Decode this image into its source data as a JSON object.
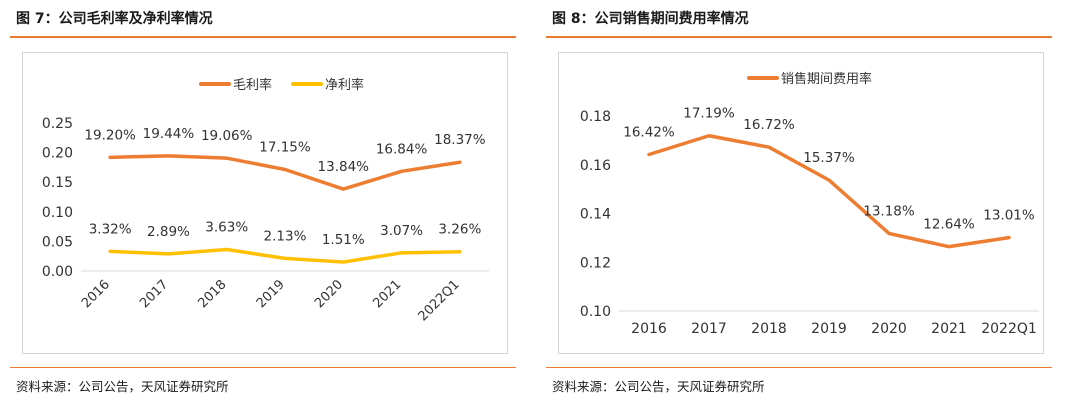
{
  "colors": {
    "accent": "#e8792e",
    "gross": "#ed7d31",
    "net": "#ffc000"
  },
  "left": {
    "figure_title": "图 7：公司毛利率及净利率情况",
    "source": "资料来源：公司公告，天风证券研究所"
  },
  "right": {
    "figure_title": "图 8：公司销售期间费用率情况",
    "source": "资料来源：公司公告，天风证券研究所"
  },
  "chart_data": [
    {
      "type": "line",
      "categories": [
        "2016",
        "2017",
        "2018",
        "2019",
        "2020",
        "2021",
        "2022Q1"
      ],
      "ylim": [
        0,
        0.25
      ],
      "yticks": [
        "0.00",
        "0.05",
        "0.10",
        "0.15",
        "0.20",
        "0.25"
      ],
      "legend_position": "top",
      "grid": false,
      "series": [
        {
          "name": "毛利率",
          "color": "#ed7d31",
          "values": [
            0.192,
            0.1944,
            0.1906,
            0.1715,
            0.1384,
            0.1684,
            0.1837
          ],
          "labels": [
            "19.20%",
            "19.44%",
            "19.06%",
            "17.15%",
            "13.84%",
            "16.84%",
            "18.37%"
          ]
        },
        {
          "name": "净利率",
          "color": "#ffc000",
          "values": [
            0.0332,
            0.0289,
            0.0363,
            0.0213,
            0.0151,
            0.0307,
            0.0326
          ],
          "labels": [
            "3.32%",
            "2.89%",
            "3.63%",
            "2.13%",
            "1.51%",
            "3.07%",
            "3.26%"
          ]
        }
      ]
    },
    {
      "type": "line",
      "categories": [
        "2016",
        "2017",
        "2018",
        "2019",
        "2020",
        "2021",
        "2022Q1"
      ],
      "ylim": [
        0.1,
        0.18
      ],
      "yticks": [
        "0.10",
        "0.12",
        "0.14",
        "0.16",
        "0.18"
      ],
      "legend_position": "top",
      "grid": false,
      "series": [
        {
          "name": "销售期间费用率",
          "color": "#ed7d31",
          "values": [
            0.1642,
            0.1719,
            0.1672,
            0.1537,
            0.1318,
            0.1264,
            0.1301
          ],
          "labels": [
            "16.42%",
            "17.19%",
            "16.72%",
            "15.37%",
            "13.18%",
            "12.64%",
            "13.01%"
          ]
        }
      ]
    }
  ]
}
